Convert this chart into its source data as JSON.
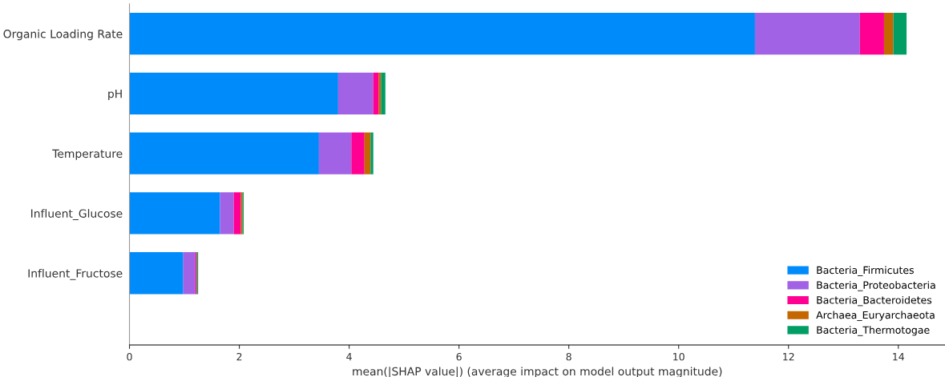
{
  "chart_data": {
    "type": "bar",
    "orientation": "horizontal",
    "stacked": true,
    "xlabel": "mean(|SHAP value|) (average impact on model output magnitude)",
    "categories": [
      "Organic Loading Rate",
      "pH",
      "Temperature",
      "Influent_Glucose",
      "Influent_Fructose"
    ],
    "series": [
      {
        "name": "Bacteria_Firmicutes",
        "color": "#008bfb",
        "values": [
          11.39,
          3.8,
          3.45,
          1.65,
          0.98
        ]
      },
      {
        "name": "Bacteria_Proteobacteria",
        "color": "#a262e5",
        "values": [
          1.91,
          0.64,
          0.59,
          0.25,
          0.22
        ]
      },
      {
        "name": "Bacteria_Bacteroidetes",
        "color": "#ff0093",
        "values": [
          0.44,
          0.1,
          0.24,
          0.13,
          0.02
        ]
      },
      {
        "name": "Archaea_Euryarchaeota",
        "color": "#c46700",
        "values": [
          0.17,
          0.04,
          0.11,
          0.03,
          0.01
        ]
      },
      {
        "name": "Bacteria_Thermotogae",
        "color": "#009e64",
        "values": [
          0.24,
          0.08,
          0.05,
          0.02,
          0.02
        ]
      }
    ],
    "xlim": [
      0,
      14.85
    ],
    "xticks": [
      0,
      2,
      4,
      6,
      8,
      10,
      12,
      14
    ],
    "legend": "bottom right",
    "grid": false
  }
}
